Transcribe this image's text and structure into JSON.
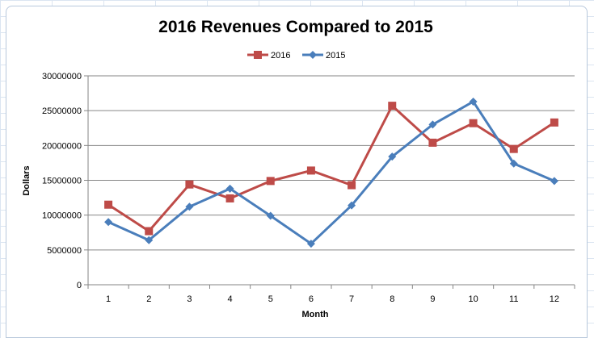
{
  "chart_data": {
    "type": "line",
    "title": "2016 Revenues Compared to 2015",
    "xlabel": "Month",
    "ylabel": "Dollars",
    "categories": [
      "1",
      "2",
      "3",
      "4",
      "5",
      "6",
      "7",
      "8",
      "9",
      "10",
      "11",
      "12"
    ],
    "ylim": [
      0,
      30000000
    ],
    "yticks": [
      "0",
      "5000000",
      "10000000",
      "15000000",
      "20000000",
      "25000000",
      "30000000"
    ],
    "grid": true,
    "legend_position": "top",
    "series": [
      {
        "name": "2016",
        "color": "#be4b48",
        "marker": "square",
        "values": [
          11500000,
          7700000,
          14400000,
          12400000,
          14900000,
          16400000,
          14300000,
          25700000,
          20400000,
          23200000,
          19500000,
          23300000
        ]
      },
      {
        "name": "2015",
        "color": "#4a7ebb",
        "marker": "diamond",
        "values": [
          9000000,
          6400000,
          11200000,
          13800000,
          9900000,
          5900000,
          11400000,
          18400000,
          23000000,
          26300000,
          17400000,
          14900000
        ]
      }
    ]
  }
}
